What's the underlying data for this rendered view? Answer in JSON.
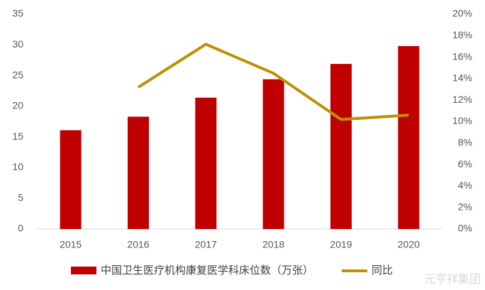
{
  "chart_data": {
    "type": "bar",
    "categories": [
      "2015",
      "2016",
      "2017",
      "2018",
      "2019",
      "2020"
    ],
    "series": [
      {
        "name": "中国卫生医疗机构康复医学科床位数（万张）",
        "type": "bar",
        "color": "#c00000",
        "values": [
          16.1,
          18.3,
          21.4,
          24.4,
          26.9,
          29.8
        ]
      },
      {
        "name": "同比",
        "type": "line",
        "axis": "y2",
        "color": "#bf9000",
        "values": [
          null,
          13.2,
          17.2,
          14.5,
          10.2,
          10.6
        ]
      }
    ],
    "ylim": [
      0,
      35
    ],
    "yticks": [
      0,
      5,
      10,
      15,
      20,
      25,
      30,
      35
    ],
    "y2lim": [
      0,
      20
    ],
    "y2ticks": [
      {
        "value": 0,
        "label": "0%"
      },
      {
        "value": 2,
        "label": "2%"
      },
      {
        "value": 4,
        "label": "4%"
      },
      {
        "value": 6,
        "label": "6%"
      },
      {
        "value": 8,
        "label": "8%"
      },
      {
        "value": 10,
        "label": "10%"
      },
      {
        "value": 12,
        "label": "12%"
      },
      {
        "value": 14,
        "label": "14%"
      },
      {
        "value": 16,
        "label": "16%"
      },
      {
        "value": 18,
        "label": "18%"
      },
      {
        "value": 20,
        "label": "20%"
      }
    ],
    "grid": false,
    "legend": "bottom",
    "watermark": "元亨祥集团"
  }
}
